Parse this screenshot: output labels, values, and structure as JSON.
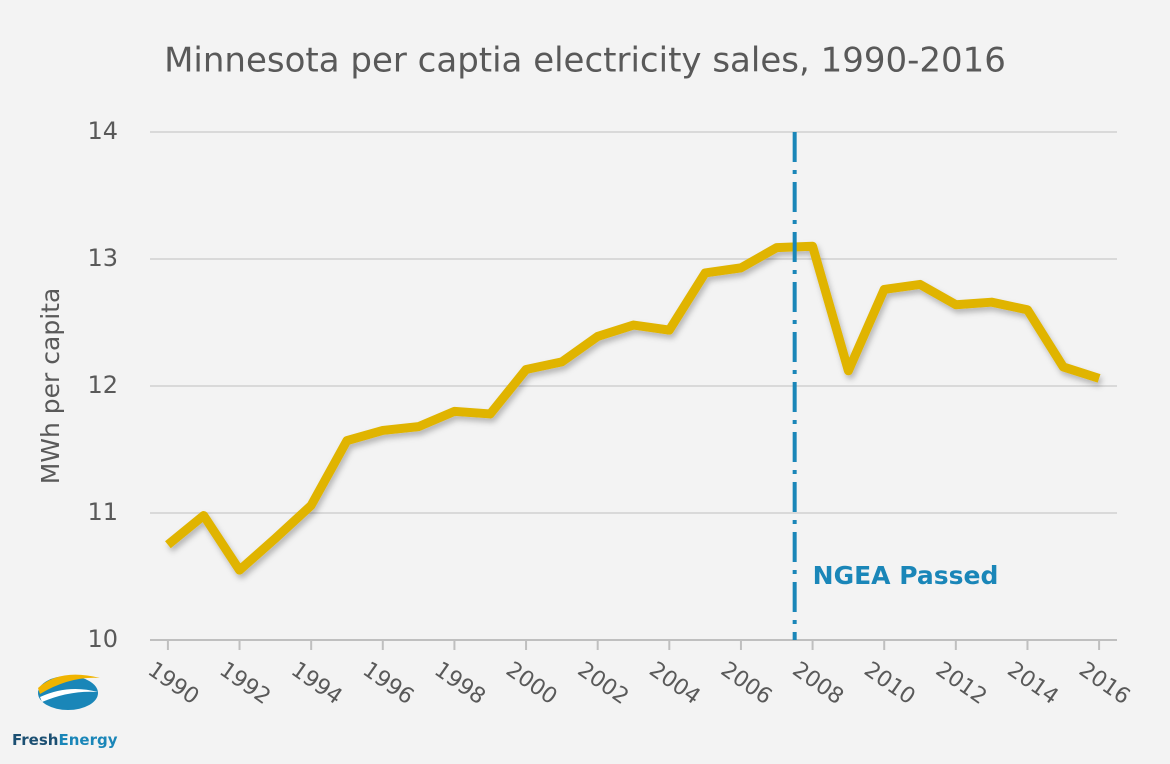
{
  "chart_data": {
    "type": "line",
    "title": "Minnesota per captia electricity sales, 1990-2016",
    "y_label": "MWh per capita",
    "x": [
      1990,
      1991,
      1992,
      1993,
      1994,
      1995,
      1996,
      1997,
      1998,
      1999,
      2000,
      2001,
      2002,
      2003,
      2004,
      2005,
      2006,
      2007,
      2008,
      2009,
      2010,
      2011,
      2012,
      2013,
      2014,
      2015,
      2016
    ],
    "series": [
      {
        "name": "MWh per capita",
        "color": "#e0b400",
        "values": [
          10.75,
          10.98,
          10.55,
          10.8,
          11.06,
          11.57,
          11.65,
          11.68,
          11.8,
          11.78,
          12.13,
          12.19,
          12.39,
          12.48,
          12.44,
          12.89,
          12.93,
          13.09,
          13.1,
          12.12,
          12.76,
          12.8,
          12.64,
          12.66,
          12.6,
          12.15,
          12.06
        ]
      }
    ],
    "xlim": [
      1989.5,
      2016.5
    ],
    "xticks": [
      1990,
      1992,
      1994,
      1996,
      1998,
      2000,
      2002,
      2004,
      2006,
      2008,
      2010,
      2012,
      2014,
      2016
    ],
    "ylim": [
      10,
      14
    ],
    "yticks": [
      10,
      11,
      12,
      13,
      14
    ],
    "grid": true,
    "annotation": {
      "x": 2007.5,
      "label": "NGEA Passed",
      "color": "#1a86b8"
    }
  },
  "brand": {
    "first": "Fresh",
    "second": "Energy"
  }
}
